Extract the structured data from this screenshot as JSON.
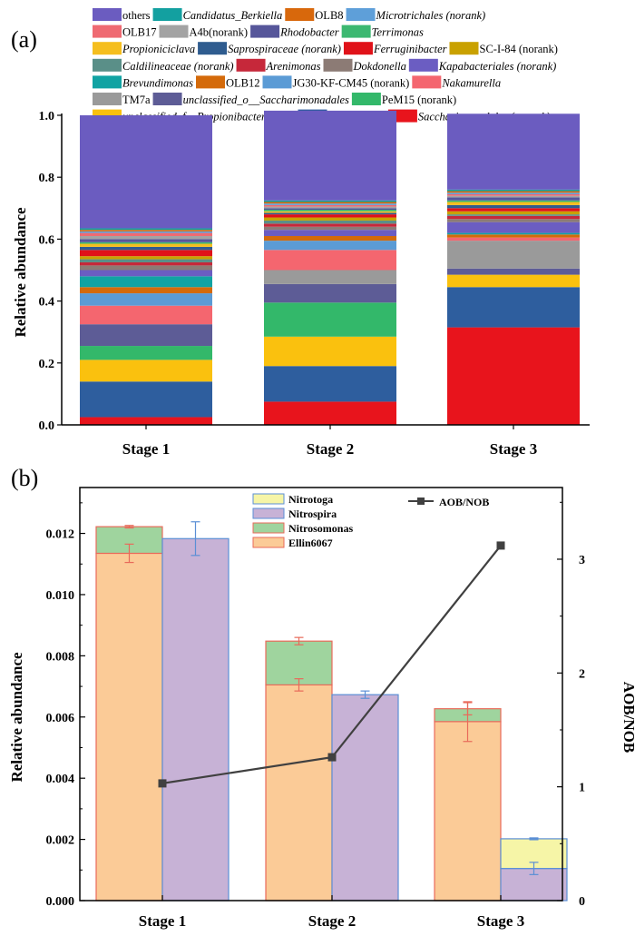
{
  "chart_data": [
    {
      "panel": "(a)",
      "type": "bar",
      "stacked": true,
      "ylabel": "Relative abundance",
      "ylim": [
        0,
        1.0
      ],
      "yticks": [
        "0.0",
        "0.2",
        "0.4",
        "0.6",
        "0.8",
        "1.0"
      ],
      "categories": [
        "Stage 1",
        "Stage 2",
        "Stage 3"
      ],
      "series": [
        {
          "name": "Saccharimonadales (norank)",
          "italic": true,
          "color": "#E8141C",
          "values": [
            0.025,
            0.075,
            0.315
          ]
        },
        {
          "name": "Micropruina",
          "italic": true,
          "color": "#2E5E9E",
          "values": [
            0.115,
            0.115,
            0.13
          ]
        },
        {
          "name": "unclassified_f__Propionibacteriaceae",
          "italic": true,
          "color": "#FAC10E",
          "values": [
            0.07,
            0.095,
            0.04
          ]
        },
        {
          "name": "PeM15 (norank)",
          "italic": false,
          "color": "#33B86A",
          "values": [
            0.045,
            0.11,
            0.0
          ]
        },
        {
          "name": "unclassified_o__Saccharimonadales",
          "italic": true,
          "color": "#5D5C96",
          "values": [
            0.07,
            0.06,
            0.02
          ]
        },
        {
          "name": "TM7a",
          "italic": false,
          "color": "#9A9A9A",
          "values": [
            0.0,
            0.045,
            0.09
          ]
        },
        {
          "name": "Nakamurella",
          "italic": true,
          "color": "#F4666F",
          "values": [
            0.06,
            0.065,
            0.01
          ]
        },
        {
          "name": "JG30-KF-CM45 (norank)",
          "italic": false,
          "color": "#5B9BD5",
          "values": [
            0.04,
            0.03,
            0.0
          ]
        },
        {
          "name": "OLB12",
          "italic": false,
          "color": "#D46A0A",
          "values": [
            0.02,
            0.015,
            0.01
          ]
        },
        {
          "name": "Brevundimonas",
          "italic": true,
          "color": "#11A3A3",
          "values": [
            0.035,
            0.0,
            0.005
          ]
        },
        {
          "name": "Kapabacteriales (norank)",
          "italic": true,
          "color": "#6B5DC2",
          "values": [
            0.02,
            0.02,
            0.035
          ]
        },
        {
          "name": "Dokdonella",
          "italic": true,
          "color": "#8C7B75",
          "values": [
            0.015,
            0.01,
            0.01
          ]
        },
        {
          "name": "Arenimonas",
          "italic": true,
          "color": "#C6283A",
          "values": [
            0.01,
            0.01,
            0.01
          ]
        },
        {
          "name": "Caldilineaceae (norank)",
          "italic": true,
          "color": "#5A8F88",
          "values": [
            0.01,
            0.01,
            0.005
          ]
        },
        {
          "name": "SC-I-84 (norank)",
          "italic": false,
          "color": "#C9A100",
          "values": [
            0.01,
            0.01,
            0.01
          ]
        },
        {
          "name": "Ferruginibacter",
          "italic": true,
          "color": "#E01219",
          "values": [
            0.02,
            0.01,
            0.01
          ]
        },
        {
          "name": "Saprospiraceae (norank)",
          "italic": true,
          "color": "#2F5C8F",
          "values": [
            0.01,
            0.005,
            0.01
          ]
        },
        {
          "name": "Propioniciclava",
          "italic": true,
          "color": "#F5BE1E",
          "values": [
            0.01,
            0.005,
            0.01
          ]
        },
        {
          "name": "Terrimonas",
          "italic": true,
          "color": "#3CB871",
          "values": [
            0.005,
            0.005,
            0.005
          ]
        },
        {
          "name": "Rhodobacter",
          "italic": true,
          "color": "#56569A",
          "values": [
            0.01,
            0.005,
            0.01
          ]
        },
        {
          "name": "A4b(norank)",
          "italic": false,
          "color": "#A3A3A3",
          "values": [
            0.01,
            0.005,
            0.005
          ]
        },
        {
          "name": "OLB17",
          "italic": false,
          "color": "#EF6A72",
          "values": [
            0.01,
            0.005,
            0.005
          ]
        },
        {
          "name": "Microtrichales (norank)",
          "italic": true,
          "color": "#5E9FD9",
          "values": [
            0.005,
            0.005,
            0.005
          ]
        },
        {
          "name": "OLB8",
          "italic": false,
          "color": "#D8680C",
          "values": [
            0.005,
            0.005,
            0.005
          ]
        },
        {
          "name": "Candidatus_Berkiella",
          "italic": true,
          "color": "#13A0A0",
          "values": [
            0.005,
            0.005,
            0.005
          ]
        },
        {
          "name": "others",
          "italic": false,
          "color": "#6B5CC0",
          "values": [
            0.365,
            0.29,
            0.245
          ]
        }
      ],
      "legend_order": [
        [
          "others",
          "Candidatus_Berkiella",
          "OLB8",
          "Microtrichales (norank)"
        ],
        [
          "OLB17",
          "A4b(norank)",
          "Rhodobacter",
          "Terrimonas"
        ],
        [
          "Propioniciclava",
          "Saprospiraceae (norank)",
          "Ferruginibacter",
          "SC-I-84 (norank)"
        ],
        [
          "Caldilineaceae (norank)",
          "Arenimonas",
          "Dokdonella",
          "Kapabacteriales (norank)"
        ],
        [
          "Brevundimonas",
          "OLB12",
          "JG30-KF-CM45 (norank)",
          "Nakamurella"
        ],
        [
          "TM7a",
          "unclassified_o__Saccharimonadales",
          "PeM15 (norank)"
        ],
        [
          "unclassified_f__Propionibacteriaceae",
          "Micropruina",
          "Saccharimonadales (norank)"
        ]
      ]
    },
    {
      "panel": "(b)",
      "type": "bar",
      "stacked": true,
      "ylabel": "Relative abundance",
      "y2label": "AOB/NOB",
      "ylim": [
        0,
        0.0135
      ],
      "y2lim": [
        0,
        3.63
      ],
      "yticks": [
        "0.000",
        "0.002",
        "0.004",
        "0.006",
        "0.008",
        "0.010",
        "0.012"
      ],
      "y2ticks": [
        "0",
        "1",
        "2",
        "3"
      ],
      "categories": [
        "Stage 1",
        "Stage 2",
        "Stage 3"
      ],
      "aob": [
        {
          "name": "Ellin6067",
          "color": "#FBCB97",
          "border": "#E86A5A",
          "values": [
            0.01135,
            0.00705,
            0.00585
          ],
          "errors": [
            0.0003,
            0.0002,
            0.00065
          ]
        },
        {
          "name": "Nitrosomonas",
          "color": "#9FD49E",
          "border": "#E86A5A",
          "values": [
            0.00087,
            0.00143,
            0.00042
          ],
          "errors": [
            4e-05,
            0.00012,
            0.0002
          ]
        }
      ],
      "nob": [
        {
          "name": "Nitrospira",
          "color": "#C7B2D6",
          "border": "#5B8FD5",
          "values": [
            0.01183,
            0.00673,
            0.00105
          ],
          "errors": [
            0.00055,
            0.00012,
            0.0002
          ]
        },
        {
          "name": "Nitrotoga",
          "color": "#F6F5A7",
          "border": "#5B8FD5",
          "values": [
            0.0,
            0.0,
            0.00097
          ],
          "errors": [
            0.0,
            0.0,
            3e-05
          ]
        }
      ],
      "legend_order": [
        "Nitrotoga",
        "Nitrospira",
        "Nitrosomonas",
        "Ellin6067"
      ],
      "line": {
        "name": "AOB/NOB",
        "color": "#404040",
        "values": [
          1.03,
          1.26,
          3.12
        ]
      }
    }
  ]
}
